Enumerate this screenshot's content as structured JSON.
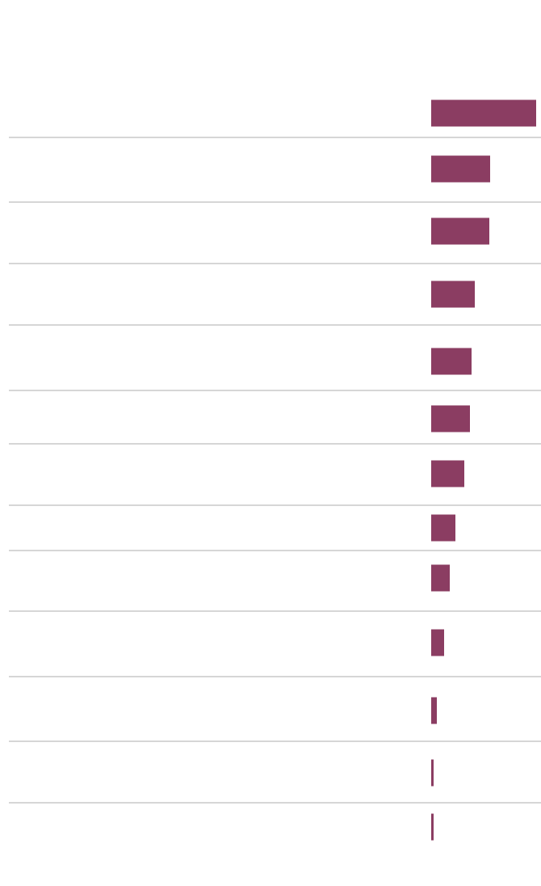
{
  "chart_data": {
    "type": "bar",
    "orientation": "horizontal",
    "categories": [
      null,
      null,
      null,
      null,
      null,
      null,
      null,
      null,
      null,
      null,
      null,
      null,
      null
    ],
    "values": [
      130,
      73,
      72,
      54,
      50,
      48,
      41,
      30,
      23,
      16,
      7,
      3,
      3
    ],
    "color": "#8b3d62",
    "xlim": [
      0,
      130
    ]
  }
}
